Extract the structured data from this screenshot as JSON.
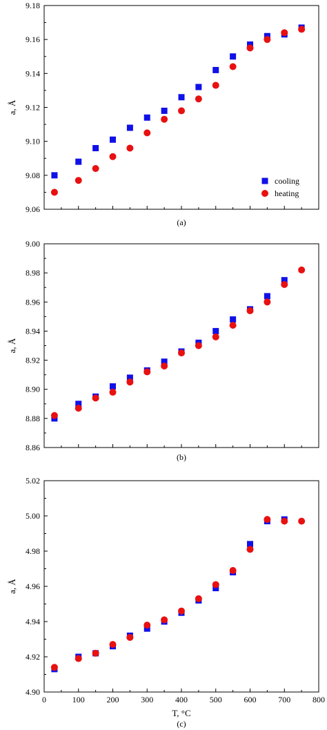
{
  "colors": {
    "cooling": "#1010e8",
    "heating": "#e81010"
  },
  "legend": {
    "cooling": "cooling",
    "heating": "heating",
    "placement": "bottom-right",
    "panel": 0
  },
  "chart_data": [
    {
      "type": "scatter",
      "panel_label": "(a)",
      "ylabel": "a, Å",
      "xlabel": "",
      "xlim": [
        0,
        800
      ],
      "ylim": [
        9.06,
        9.18
      ],
      "yticks": [
        "9.06",
        "9.08",
        "9.10",
        "9.12",
        "9.14",
        "9.16",
        "9.18"
      ],
      "xticks": [],
      "grid": false,
      "series": [
        {
          "name": "cooling",
          "marker": "square",
          "x": [
            30,
            100,
            150,
            200,
            250,
            300,
            350,
            400,
            450,
            500,
            550,
            600,
            650,
            700,
            750
          ],
          "y": [
            9.08,
            9.088,
            9.096,
            9.101,
            9.108,
            9.114,
            9.118,
            9.126,
            9.132,
            9.142,
            9.15,
            9.157,
            9.162,
            9.163,
            9.167
          ]
        },
        {
          "name": "heating",
          "marker": "circle",
          "x": [
            30,
            100,
            150,
            200,
            250,
            300,
            350,
            400,
            450,
            500,
            550,
            600,
            650,
            700,
            750
          ],
          "y": [
            9.07,
            9.077,
            9.084,
            9.091,
            9.096,
            9.105,
            9.113,
            9.118,
            9.125,
            9.133,
            9.144,
            9.155,
            9.16,
            9.164,
            9.166
          ]
        }
      ]
    },
    {
      "type": "scatter",
      "panel_label": "(b)",
      "ylabel": "a, Å",
      "xlabel": "",
      "xlim": [
        0,
        800
      ],
      "ylim": [
        8.86,
        9.0
      ],
      "yticks": [
        "8.86",
        "8.88",
        "8.90",
        "8.92",
        "8.94",
        "8.96",
        "8.98",
        "9.00"
      ],
      "xticks": [],
      "grid": false,
      "series": [
        {
          "name": "cooling",
          "marker": "square",
          "x": [
            30,
            100,
            150,
            200,
            250,
            300,
            350,
            400,
            450,
            500,
            550,
            600,
            650,
            700
          ],
          "y": [
            8.88,
            8.89,
            8.895,
            8.902,
            8.908,
            8.913,
            8.919,
            8.926,
            8.932,
            8.94,
            8.948,
            8.955,
            8.964,
            8.975
          ]
        },
        {
          "name": "heating",
          "marker": "circle",
          "x": [
            30,
            100,
            150,
            200,
            250,
            300,
            350,
            400,
            450,
            500,
            550,
            600,
            650,
            700,
            750
          ],
          "y": [
            8.882,
            8.887,
            8.894,
            8.898,
            8.905,
            8.912,
            8.916,
            8.925,
            8.93,
            8.936,
            8.944,
            8.954,
            8.96,
            8.972,
            8.982
          ]
        }
      ]
    },
    {
      "type": "scatter",
      "panel_label": "(c)",
      "ylabel": "a, Å",
      "xlabel": "T, °C",
      "xlim": [
        0,
        800
      ],
      "ylim": [
        4.9,
        5.02
      ],
      "yticks": [
        "4.90",
        "4.92",
        "4.94",
        "4.96",
        "4.98",
        "5.00",
        "5.02"
      ],
      "xticks": [
        "0",
        "100",
        "200",
        "300",
        "400",
        "500",
        "600",
        "700",
        "800"
      ],
      "grid": false,
      "series": [
        {
          "name": "cooling",
          "marker": "square",
          "x": [
            30,
            100,
            150,
            200,
            250,
            300,
            350,
            400,
            450,
            500,
            550,
            600,
            650,
            700
          ],
          "y": [
            4.913,
            4.92,
            4.922,
            4.926,
            4.932,
            4.936,
            4.94,
            4.945,
            4.952,
            4.959,
            4.968,
            4.984,
            4.997,
            4.998
          ]
        },
        {
          "name": "heating",
          "marker": "circle",
          "x": [
            30,
            100,
            150,
            200,
            250,
            300,
            350,
            400,
            450,
            500,
            550,
            600,
            650,
            700,
            750
          ],
          "y": [
            4.914,
            4.919,
            4.922,
            4.927,
            4.931,
            4.938,
            4.941,
            4.946,
            4.953,
            4.961,
            4.969,
            4.981,
            4.998,
            4.997,
            4.997
          ]
        }
      ]
    }
  ]
}
